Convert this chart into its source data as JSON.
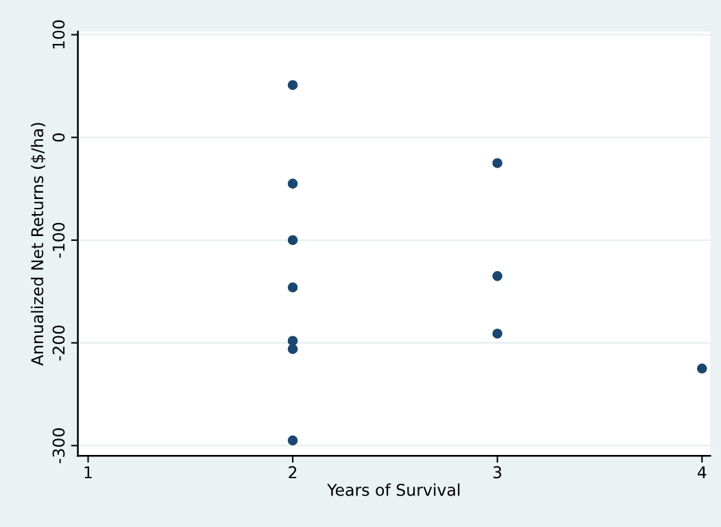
{
  "chart_data": {
    "type": "scatter",
    "xlabel": "Years of Survival",
    "ylabel": "Annualized Net Returns ($/ha)",
    "x": [
      2,
      2,
      2,
      2,
      2,
      2,
      2,
      3,
      3,
      3,
      4
    ],
    "series": [
      {
        "color": "#1a476f",
        "values": [
          51,
          -45,
          -100,
          -146,
          -198,
          -206,
          -295,
          -25,
          -135,
          -191,
          -225
        ]
      }
    ],
    "xlim": [
      0.95,
      4.04
    ],
    "ylim": [
      -310,
      103
    ],
    "xticks": [
      1,
      2,
      3,
      4
    ],
    "yticks": [
      -300,
      -200,
      -100,
      0,
      100
    ],
    "grid": "y",
    "marker": "circle",
    "legend": false
  }
}
